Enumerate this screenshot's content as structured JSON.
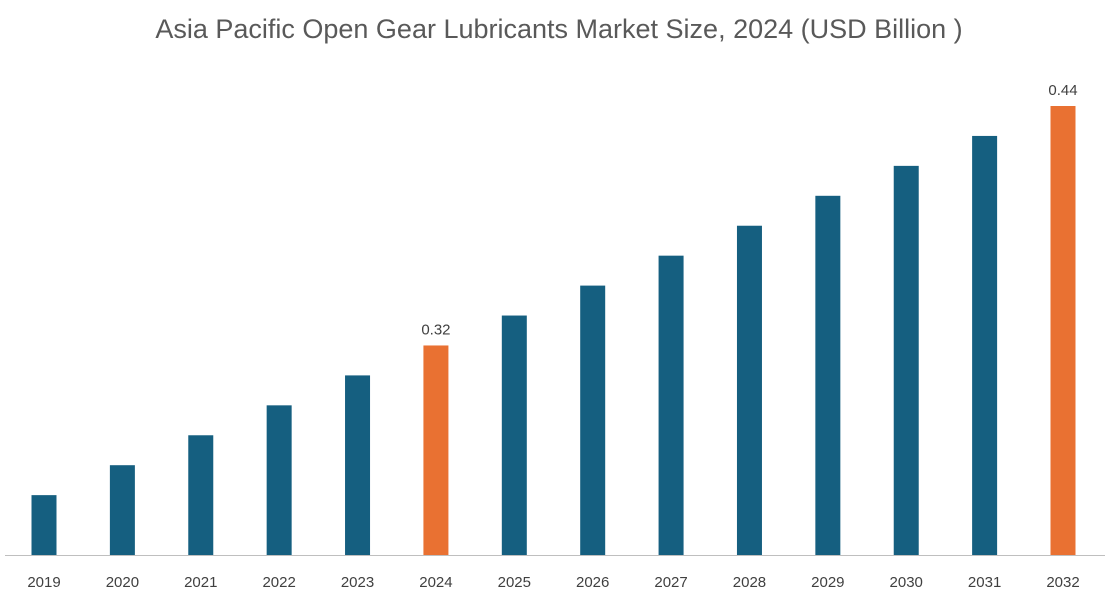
{
  "chart_data": {
    "type": "bar",
    "title": "Asia Pacific Open Gear Lubricants Market Size, 2024 (USD Billion )",
    "xlabel": "",
    "ylabel": "",
    "categories": [
      "2019",
      "2020",
      "2021",
      "2022",
      "2023",
      "2024",
      "2025",
      "2026",
      "2027",
      "2028",
      "2029",
      "2030",
      "2031",
      "2032"
    ],
    "values": [
      0.245,
      0.26,
      0.275,
      0.29,
      0.305,
      0.32,
      0.335,
      0.35,
      0.365,
      0.38,
      0.395,
      0.41,
      0.425,
      0.44
    ],
    "data_labels": {
      "2024": "0.32",
      "2032": "0.44"
    },
    "highlight": [
      "2024",
      "2032"
    ],
    "ylim": [
      0.215,
      0.44
    ],
    "grid": false,
    "legend": "none",
    "colors": {
      "default": "#155F80",
      "highlight": "#E97132",
      "axis": "#BFBFBF"
    }
  }
}
